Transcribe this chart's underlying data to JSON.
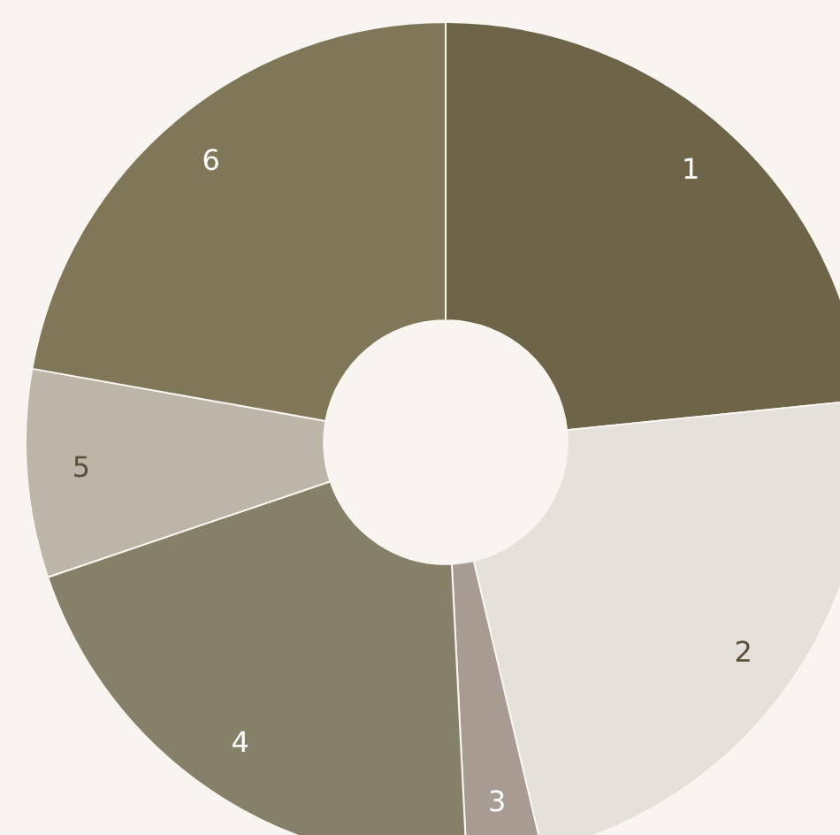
{
  "chart_data": {
    "type": "donut",
    "categories": [
      "1",
      "2",
      "3",
      "4",
      "5",
      "6"
    ],
    "values": [
      23.4,
      22.9,
      2.9,
      20.6,
      8.0,
      22.2
    ],
    "colors": [
      "#6e6549",
      "#e4e0da",
      "#a89b92",
      "#878068",
      "#bcb5a8",
      "#807759"
    ],
    "legend": false
  }
}
